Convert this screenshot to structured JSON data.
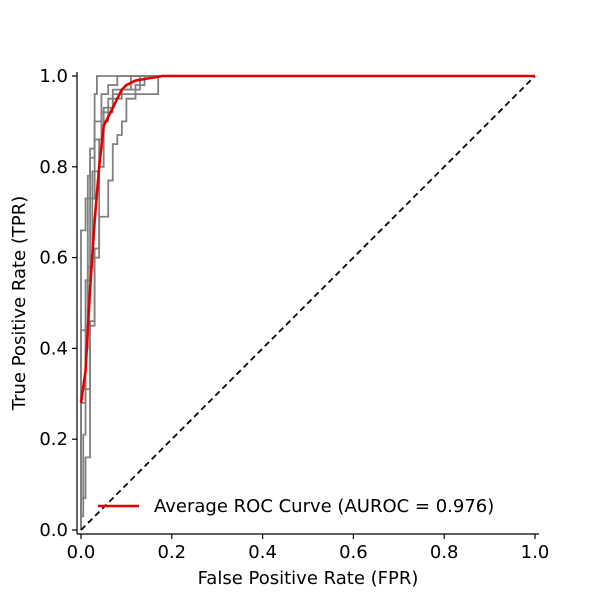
{
  "chart_data": {
    "type": "line",
    "title": "",
    "xlabel": "False Positive Rate (FPR)",
    "ylabel": "True Positive Rate (TPR)",
    "xlim": [
      0.0,
      1.0
    ],
    "ylim": [
      0.0,
      1.0
    ],
    "x_ticks": [
      0.0,
      0.2,
      0.4,
      0.6,
      0.8,
      1.0
    ],
    "y_ticks": [
      0.0,
      0.2,
      0.4,
      0.6,
      0.8,
      1.0
    ],
    "x_tick_labels": [
      "0.0",
      "0.2",
      "0.4",
      "0.6",
      "0.8",
      "1.0"
    ],
    "y_tick_labels": [
      "0.0",
      "0.2",
      "0.4",
      "0.6",
      "0.8",
      "1.0"
    ],
    "grid": false,
    "legend_position": "lower-right",
    "legend": [
      "Average ROC Curve (AUROC = 0.976)"
    ],
    "colors": {
      "fold_curves": "#808080",
      "average_curve": "#e00000",
      "chance_line": "#000000"
    },
    "series": [
      {
        "role": "fold",
        "style": "step",
        "points": [
          [
            0.0,
            0.0
          ],
          [
            0.0,
            0.03
          ],
          [
            0.005,
            0.03
          ],
          [
            0.005,
            0.21
          ],
          [
            0.01,
            0.21
          ],
          [
            0.01,
            0.45
          ],
          [
            0.015,
            0.45
          ],
          [
            0.015,
            0.78
          ],
          [
            0.02,
            0.78
          ],
          [
            0.02,
            0.84
          ],
          [
            0.03,
            0.84
          ],
          [
            0.03,
            0.9
          ],
          [
            0.045,
            0.9
          ],
          [
            0.045,
            0.96
          ],
          [
            0.06,
            0.96
          ],
          [
            0.06,
            0.98
          ],
          [
            0.08,
            0.98
          ],
          [
            0.08,
            1.0
          ],
          [
            1.0,
            1.0
          ]
        ]
      },
      {
        "role": "fold",
        "style": "step",
        "points": [
          [
            0.0,
            0.0
          ],
          [
            0.0,
            0.66
          ],
          [
            0.01,
            0.66
          ],
          [
            0.01,
            0.73
          ],
          [
            0.02,
            0.73
          ],
          [
            0.02,
            0.82
          ],
          [
            0.03,
            0.82
          ],
          [
            0.03,
            0.96
          ],
          [
            0.035,
            0.96
          ],
          [
            0.035,
            1.0
          ],
          [
            1.0,
            1.0
          ]
        ]
      },
      {
        "role": "fold",
        "style": "step",
        "points": [
          [
            0.0,
            0.0
          ],
          [
            0.0,
            0.07
          ],
          [
            0.01,
            0.07
          ],
          [
            0.01,
            0.16
          ],
          [
            0.02,
            0.16
          ],
          [
            0.02,
            0.45
          ],
          [
            0.03,
            0.45
          ],
          [
            0.03,
            0.62
          ],
          [
            0.04,
            0.62
          ],
          [
            0.04,
            0.8
          ],
          [
            0.05,
            0.8
          ],
          [
            0.05,
            0.9
          ],
          [
            0.06,
            0.9
          ],
          [
            0.06,
            0.95
          ],
          [
            0.09,
            0.95
          ],
          [
            0.09,
            0.97
          ],
          [
            0.13,
            0.97
          ],
          [
            0.13,
            1.0
          ],
          [
            1.0,
            1.0
          ]
        ]
      },
      {
        "role": "fold",
        "style": "step",
        "points": [
          [
            0.0,
            0.0
          ],
          [
            0.0,
            0.28
          ],
          [
            0.01,
            0.28
          ],
          [
            0.01,
            0.4
          ],
          [
            0.015,
            0.4
          ],
          [
            0.015,
            0.58
          ],
          [
            0.025,
            0.58
          ],
          [
            0.025,
            0.79
          ],
          [
            0.04,
            0.79
          ],
          [
            0.04,
            0.86
          ],
          [
            0.05,
            0.86
          ],
          [
            0.05,
            0.93
          ],
          [
            0.07,
            0.93
          ],
          [
            0.07,
            0.97
          ],
          [
            0.11,
            0.97
          ],
          [
            0.11,
            1.0
          ],
          [
            1.0,
            1.0
          ]
        ]
      },
      {
        "role": "fold",
        "style": "step",
        "points": [
          [
            0.0,
            0.0
          ],
          [
            0.0,
            0.44
          ],
          [
            0.01,
            0.44
          ],
          [
            0.01,
            0.55
          ],
          [
            0.02,
            0.55
          ],
          [
            0.02,
            0.73
          ],
          [
            0.03,
            0.73
          ],
          [
            0.03,
            0.86
          ],
          [
            0.045,
            0.86
          ],
          [
            0.045,
            0.92
          ],
          [
            0.07,
            0.92
          ],
          [
            0.07,
            0.96
          ],
          [
            0.17,
            0.96
          ],
          [
            0.17,
            1.0
          ],
          [
            1.0,
            1.0
          ]
        ]
      },
      {
        "role": "fold",
        "style": "step",
        "points": [
          [
            0.0,
            0.0
          ],
          [
            0.0,
            0.31
          ],
          [
            0.02,
            0.31
          ],
          [
            0.02,
            0.46
          ],
          [
            0.03,
            0.46
          ],
          [
            0.03,
            0.6
          ],
          [
            0.04,
            0.6
          ],
          [
            0.04,
            0.69
          ],
          [
            0.06,
            0.69
          ],
          [
            0.06,
            0.77
          ],
          [
            0.07,
            0.77
          ],
          [
            0.07,
            0.85
          ],
          [
            0.08,
            0.85
          ],
          [
            0.08,
            0.87
          ],
          [
            0.09,
            0.87
          ],
          [
            0.09,
            0.9
          ],
          [
            0.1,
            0.9
          ],
          [
            0.1,
            0.95
          ],
          [
            0.12,
            0.95
          ],
          [
            0.12,
            0.98
          ],
          [
            0.14,
            0.98
          ],
          [
            0.14,
            1.0
          ],
          [
            1.0,
            1.0
          ]
        ]
      },
      {
        "role": "average",
        "name": "Average ROC Curve (AUROC = 0.976)",
        "style": "line",
        "points": [
          [
            0.0,
            0.28
          ],
          [
            0.01,
            0.35
          ],
          [
            0.02,
            0.53
          ],
          [
            0.03,
            0.68
          ],
          [
            0.04,
            0.8
          ],
          [
            0.05,
            0.89
          ],
          [
            0.06,
            0.91
          ],
          [
            0.07,
            0.93
          ],
          [
            0.08,
            0.95
          ],
          [
            0.09,
            0.97
          ],
          [
            0.1,
            0.98
          ],
          [
            0.12,
            0.99
          ],
          [
            0.15,
            0.995
          ],
          [
            0.18,
            1.0
          ],
          [
            1.0,
            1.0
          ]
        ]
      },
      {
        "role": "chance",
        "style": "dashed",
        "points": [
          [
            0.0,
            0.0
          ],
          [
            1.0,
            1.0
          ]
        ]
      }
    ]
  }
}
